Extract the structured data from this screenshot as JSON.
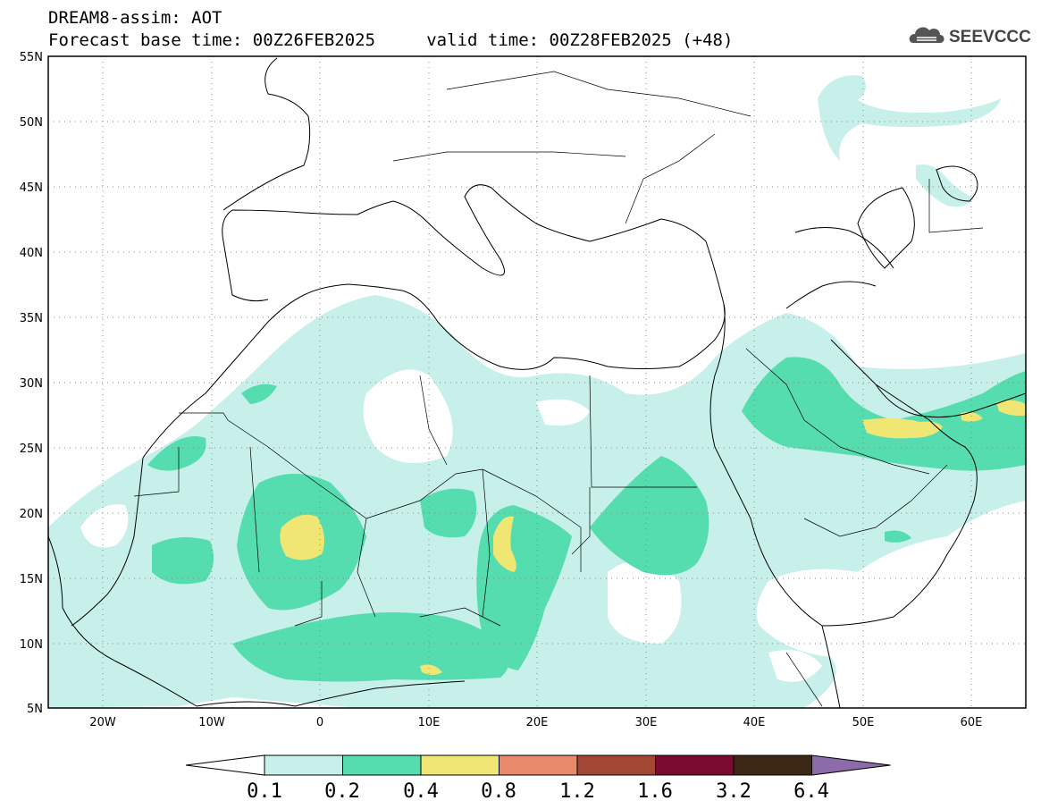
{
  "header": {
    "line1": "DREAM8-assim: AOT",
    "line2": "Forecast base time: 00Z26FEB2025     valid time: 00Z28FEB2025 (+48)"
  },
  "logo": {
    "text": "SEEVCCC",
    "icon": "cloud-icon"
  },
  "map": {
    "lon_range": [
      -25,
      65
    ],
    "lat_range": [
      5,
      55
    ],
    "lat_labels": [
      "55N",
      "50N",
      "45N",
      "40N",
      "35N",
      "30N",
      "25N",
      "20N",
      "15N",
      "10N",
      "5N"
    ],
    "lon_labels": [
      "20W",
      "10W",
      "0",
      "10E",
      "20E",
      "30E",
      "40E",
      "50E",
      "60E"
    ],
    "gridlines": true
  },
  "legend": {
    "levels": [
      "0.1",
      "0.2",
      "0.4",
      "0.8",
      "1.2",
      "1.6",
      "3.2",
      "6.4"
    ],
    "colors": {
      "below": "#ffffff",
      "c1": "#c8f0ea",
      "c2": "#55dcaf",
      "c3": "#f0e674",
      "c4": "#e8896a",
      "c5": "#a34634",
      "c6": "#7a0a30",
      "c7": "#3c2814",
      "above": "#8b6ba8"
    }
  }
}
